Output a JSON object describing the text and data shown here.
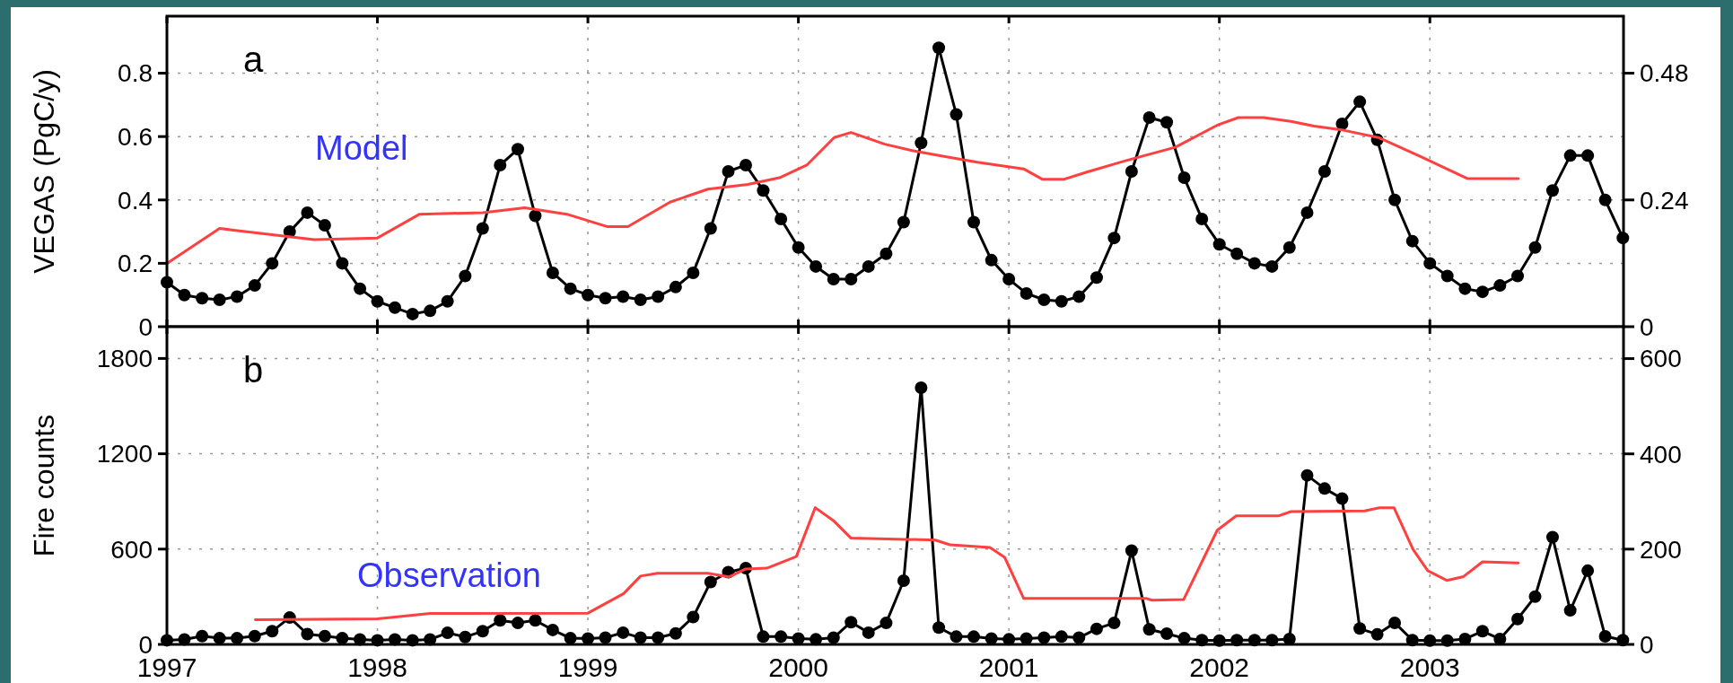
{
  "chart_data": [
    {
      "type": "line",
      "ylabel": "VEGAS (PgC/y)",
      "annotations": [
        "a",
        "Model"
      ],
      "xlim": [
        1997,
        2003.92
      ],
      "xticks": [
        1997,
        1998,
        1999,
        2000,
        2001,
        2002,
        2003
      ],
      "ylim": [
        0,
        0.98
      ],
      "yticks": [
        0,
        0.2,
        0.4,
        0.6,
        0.8
      ],
      "y2lim": [
        0,
        0.588
      ],
      "y2ticks": [
        0,
        0.24,
        0.48
      ],
      "tick_labels": "y",
      "grid": true,
      "series": [
        {
          "color": "#000000",
          "marker": "circle",
          "x": [
            1997,
            1997.083,
            1997.167,
            1997.25,
            1997.333,
            1997.417,
            1997.5,
            1997.583,
            1997.667,
            1997.75,
            1997.833,
            1997.917,
            1998,
            1998.083,
            1998.167,
            1998.25,
            1998.333,
            1998.417,
            1998.5,
            1998.583,
            1998.667,
            1998.75,
            1998.833,
            1998.917,
            1999,
            1999.083,
            1999.167,
            1999.25,
            1999.333,
            1999.417,
            1999.5,
            1999.583,
            1999.667,
            1999.75,
            1999.833,
            1999.917,
            2000,
            2000.083,
            2000.167,
            2000.25,
            2000.333,
            2000.417,
            2000.5,
            2000.583,
            2000.667,
            2000.75,
            2000.833,
            2000.917,
            2001,
            2001.083,
            2001.167,
            2001.25,
            2001.333,
            2001.417,
            2001.5,
            2001.583,
            2001.667,
            2001.75,
            2001.833,
            2001.917,
            2002,
            2002.083,
            2002.167,
            2002.25,
            2002.333,
            2002.417,
            2002.5,
            2002.583,
            2002.667,
            2002.75,
            2002.833,
            2002.917,
            2003,
            2003.083,
            2003.167,
            2003.25,
            2003.333,
            2003.417,
            2003.5,
            2003.583,
            2003.667,
            2003.75,
            2003.833,
            2003.917
          ],
          "values": [
            0.14,
            0.1,
            0.09,
            0.085,
            0.095,
            0.13,
            0.2,
            0.3,
            0.36,
            0.32,
            0.2,
            0.12,
            0.08,
            0.06,
            0.04,
            0.05,
            0.08,
            0.16,
            0.31,
            0.51,
            0.56,
            0.35,
            0.17,
            0.12,
            0.1,
            0.09,
            0.095,
            0.085,
            0.095,
            0.125,
            0.17,
            0.31,
            0.49,
            0.51,
            0.43,
            0.34,
            0.25,
            0.19,
            0.15,
            0.15,
            0.19,
            0.23,
            0.33,
            0.58,
            0.88,
            0.67,
            0.33,
            0.21,
            0.15,
            0.105,
            0.085,
            0.08,
            0.095,
            0.155,
            0.28,
            0.49,
            0.66,
            0.645,
            0.47,
            0.34,
            0.26,
            0.23,
            0.2,
            0.19,
            0.25,
            0.36,
            0.49,
            0.64,
            0.71,
            0.59,
            0.4,
            0.27,
            0.2,
            0.16,
            0.12,
            0.11,
            0.13,
            0.16,
            0.25,
            0.43,
            0.54,
            0.54,
            0.4,
            0.28
          ]
        },
        {
          "color": "#ff4040",
          "marker": "none",
          "x": [
            1997,
            1997.25,
            1997.7,
            1998,
            1998.2,
            1998.5,
            1998.7,
            1998.9,
            1999.09,
            1999.19,
            1999.39,
            1999.57,
            1999.76,
            1999.91,
            2000.04,
            2000.17,
            2000.25,
            2000.41,
            2000.54,
            2000.68,
            2000.85,
            2001.07,
            2001.16,
            2001.26,
            2001.37,
            2001.55,
            2001.79,
            2001.99,
            2002.09,
            2002.21,
            2002.34,
            2002.45,
            2002.59,
            2002.76,
            2002.96,
            2003.18,
            2003.42
          ],
          "values": [
            0.2,
            0.31,
            0.275,
            0.28,
            0.355,
            0.36,
            0.375,
            0.355,
            0.316,
            0.316,
            0.393,
            0.434,
            0.449,
            0.47,
            0.51,
            0.597,
            0.613,
            0.576,
            0.556,
            0.539,
            0.519,
            0.498,
            0.465,
            0.465,
            0.488,
            0.523,
            0.566,
            0.636,
            0.66,
            0.66,
            0.648,
            0.633,
            0.62,
            0.596,
            0.536,
            0.467,
            0.467
          ]
        }
      ]
    },
    {
      "type": "line",
      "ylabel": "Fire counts",
      "annotations": [
        "b",
        "Observation"
      ],
      "xlim": [
        1997,
        2003.92
      ],
      "xticks": [
        1997,
        1998,
        1999,
        2000,
        2001,
        2002,
        2003
      ],
      "ylim": [
        0,
        2000
      ],
      "yticks": [
        0,
        600,
        1200,
        1800
      ],
      "y2lim": [
        0,
        667
      ],
      "y2ticks": [
        0,
        200,
        400,
        600
      ],
      "grid": true,
      "series": [
        {
          "color": "#000000",
          "marker": "circle",
          "x": [
            1997,
            1997.083,
            1997.167,
            1997.25,
            1997.333,
            1997.417,
            1997.5,
            1997.583,
            1997.667,
            1997.75,
            1997.833,
            1997.917,
            1998,
            1998.083,
            1998.167,
            1998.25,
            1998.333,
            1998.417,
            1998.5,
            1998.583,
            1998.667,
            1998.75,
            1998.833,
            1998.917,
            1999,
            1999.083,
            1999.167,
            1999.25,
            1999.333,
            1999.417,
            1999.5,
            1999.583,
            1999.667,
            1999.75,
            1999.833,
            1999.917,
            2000,
            2000.083,
            2000.167,
            2000.25,
            2000.333,
            2000.417,
            2000.5,
            2000.583,
            2000.667,
            2000.75,
            2000.833,
            2000.917,
            2001,
            2001.083,
            2001.167,
            2001.25,
            2001.333,
            2001.417,
            2001.5,
            2001.583,
            2001.667,
            2001.75,
            2001.833,
            2001.917,
            2002,
            2002.083,
            2002.167,
            2002.25,
            2002.333,
            2002.417,
            2002.5,
            2002.583,
            2002.667,
            2002.75,
            2002.833,
            2002.917,
            2003,
            2003.083,
            2003.167,
            2003.25,
            2003.333,
            2003.417,
            2003.5,
            2003.583,
            2003.667,
            2003.75,
            2003.833,
            2003.917
          ],
          "values": [
            26,
            31,
            52,
            39,
            39,
            52,
            83,
            169,
            65,
            52,
            39,
            31,
            26,
            31,
            26,
            31,
            73,
            47,
            83,
            151,
            135,
            151,
            91,
            39,
            37,
            42,
            74,
            42,
            42,
            69,
            172,
            393,
            455,
            480,
            49,
            49,
            37,
            32,
            42,
            140,
            74,
            135,
            401,
            1616,
            106,
            49,
            49,
            37,
            32,
            37,
            42,
            49,
            42,
            98,
            135,
            590,
            95,
            68,
            39,
            27,
            24,
            27,
            27,
            27,
            34,
            1064,
            981,
            918,
            100,
            63,
            136,
            27,
            24,
            24,
            34,
            83,
            34,
            160,
            301,
            675,
            214,
            464,
            51,
            27
          ]
        },
        {
          "color": "#ff4040",
          "marker": "none",
          "x": [
            1997.42,
            1998,
            1998.25,
            1999,
            1999.17,
            1999.25,
            1999.33,
            1999.57,
            1999.67,
            1999.75,
            1999.85,
            1999.99,
            2000.08,
            2000.17,
            2000.25,
            2000.65,
            2000.72,
            2000.91,
            2000.98,
            2001.07,
            2001.65,
            2001.68,
            2001.83,
            2001.99,
            2002.08,
            2002.28,
            2002.34,
            2002.69,
            2002.76,
            2002.83,
            2002.92,
            2002.99,
            2003.08,
            2003.16,
            2003.25,
            2003.42
          ],
          "values": [
            156,
            161,
            195,
            197,
            320,
            430,
            448,
            448,
            425,
            475,
            480,
            553,
            861,
            775,
            669,
            657,
            627,
            610,
            548,
            290,
            290,
            278,
            282,
            719,
            809,
            809,
            836,
            840,
            860,
            860,
            598,
            464,
            403,
            427,
            520,
            513
          ]
        }
      ]
    }
  ]
}
